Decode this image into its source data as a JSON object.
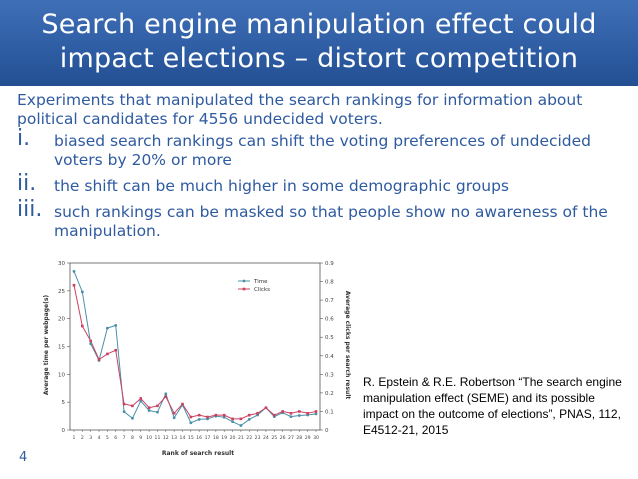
{
  "slide": {
    "title_line1": "Search engine manipulation effect could",
    "title_line2": "impact elections – distort competition",
    "intro": "Experiments that manipulated the search rankings for information about political candidates for 4556 undecided voters.",
    "items": [
      {
        "num": "i.",
        "text": "biased search rankings can shift the voting preferences of undecided voters by 20% or more"
      },
      {
        "num": "ii.",
        "text": "the shift can be much higher in some demographic groups"
      },
      {
        "num": "iii.",
        "text": "such rankings can be masked so that people show no awareness of the manipulation."
      }
    ],
    "citation": "R. Epstein & R.E. Robertson “The search engine manipulation effect (SEME) and its possible impact on the outcome of elections”, PNAS, 112, E4512-21, 2015",
    "page_number": "4"
  },
  "chart_data": {
    "type": "line",
    "x": [
      1,
      2,
      3,
      4,
      5,
      6,
      7,
      8,
      9,
      10,
      11,
      12,
      13,
      14,
      15,
      16,
      17,
      18,
      19,
      20,
      21,
      22,
      23,
      24,
      25,
      26,
      27,
      28,
      29,
      30
    ],
    "xlabel": "Rank of search result",
    "ylabel": "Average time per webpage(s)",
    "ylabel_right": "Average clicks per search result",
    "ylim": [
      0,
      30
    ],
    "ylim_right": [
      0,
      0.9
    ],
    "yticks": [
      0,
      5,
      10,
      15,
      20,
      25,
      30
    ],
    "yticks_right": [
      "0",
      "0.1",
      "0.2",
      "0.3",
      "0.4",
      "0.5",
      "0.6",
      "0.7",
      "0.8",
      "0.9"
    ],
    "legend_position": "top-right",
    "series": [
      {
        "name": "Time",
        "axis": "left",
        "color": "#4a90a8",
        "values": [
          28.5,
          24.8,
          15.5,
          12.5,
          18.3,
          18.8,
          3.3,
          2.1,
          5.2,
          3.5,
          3.2,
          6.5,
          2.2,
          4.5,
          1.3,
          1.9,
          2.0,
          2.5,
          2.3,
          1.5,
          0.8,
          1.9,
          2.7,
          4.0,
          2.4,
          3.1,
          2.4,
          2.6,
          2.7,
          2.9
        ]
      },
      {
        "name": "Clicks",
        "axis": "right",
        "color": "#cc4060",
        "values": [
          0.78,
          0.56,
          0.48,
          0.38,
          0.41,
          0.43,
          0.14,
          0.13,
          0.17,
          0.12,
          0.13,
          0.18,
          0.09,
          0.14,
          0.07,
          0.08,
          0.07,
          0.08,
          0.08,
          0.06,
          0.06,
          0.08,
          0.09,
          0.12,
          0.08,
          0.1,
          0.09,
          0.1,
          0.09,
          0.1
        ]
      }
    ]
  }
}
